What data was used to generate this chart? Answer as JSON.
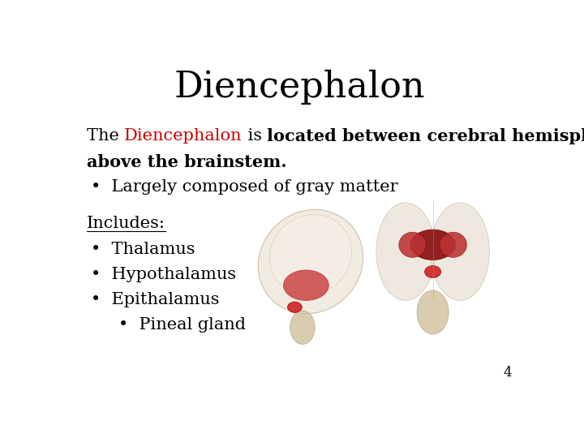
{
  "title": "Diencephalon",
  "title_fontsize": 32,
  "title_fontfamily": "serif",
  "background_color": "#ffffff",
  "text_color": "#000000",
  "highlight_color": "#cc0000",
  "page_number": "4",
  "line1_parts": [
    {
      "text": "The ",
      "color": "#000000",
      "bold": false
    },
    {
      "text": "Diencephalon",
      "color": "#cc0000",
      "bold": false
    },
    {
      "text": " is ",
      "color": "#000000",
      "bold": false
    },
    {
      "text": "located between cerebral hemispheres and",
      "color": "#000000",
      "bold": true
    }
  ],
  "line2": "above the brainstem.",
  "line2_bold": true,
  "bullet1": "Largely composed of gray matter",
  "includes_label": "Includes:",
  "bullet2": "Thalamus",
  "bullet3": "Hypothalamus",
  "bullet4": "Epithalamus",
  "sub_bullet1": "Pineal gland",
  "body_fontsize": 15,
  "body_fontfamily": "serif"
}
